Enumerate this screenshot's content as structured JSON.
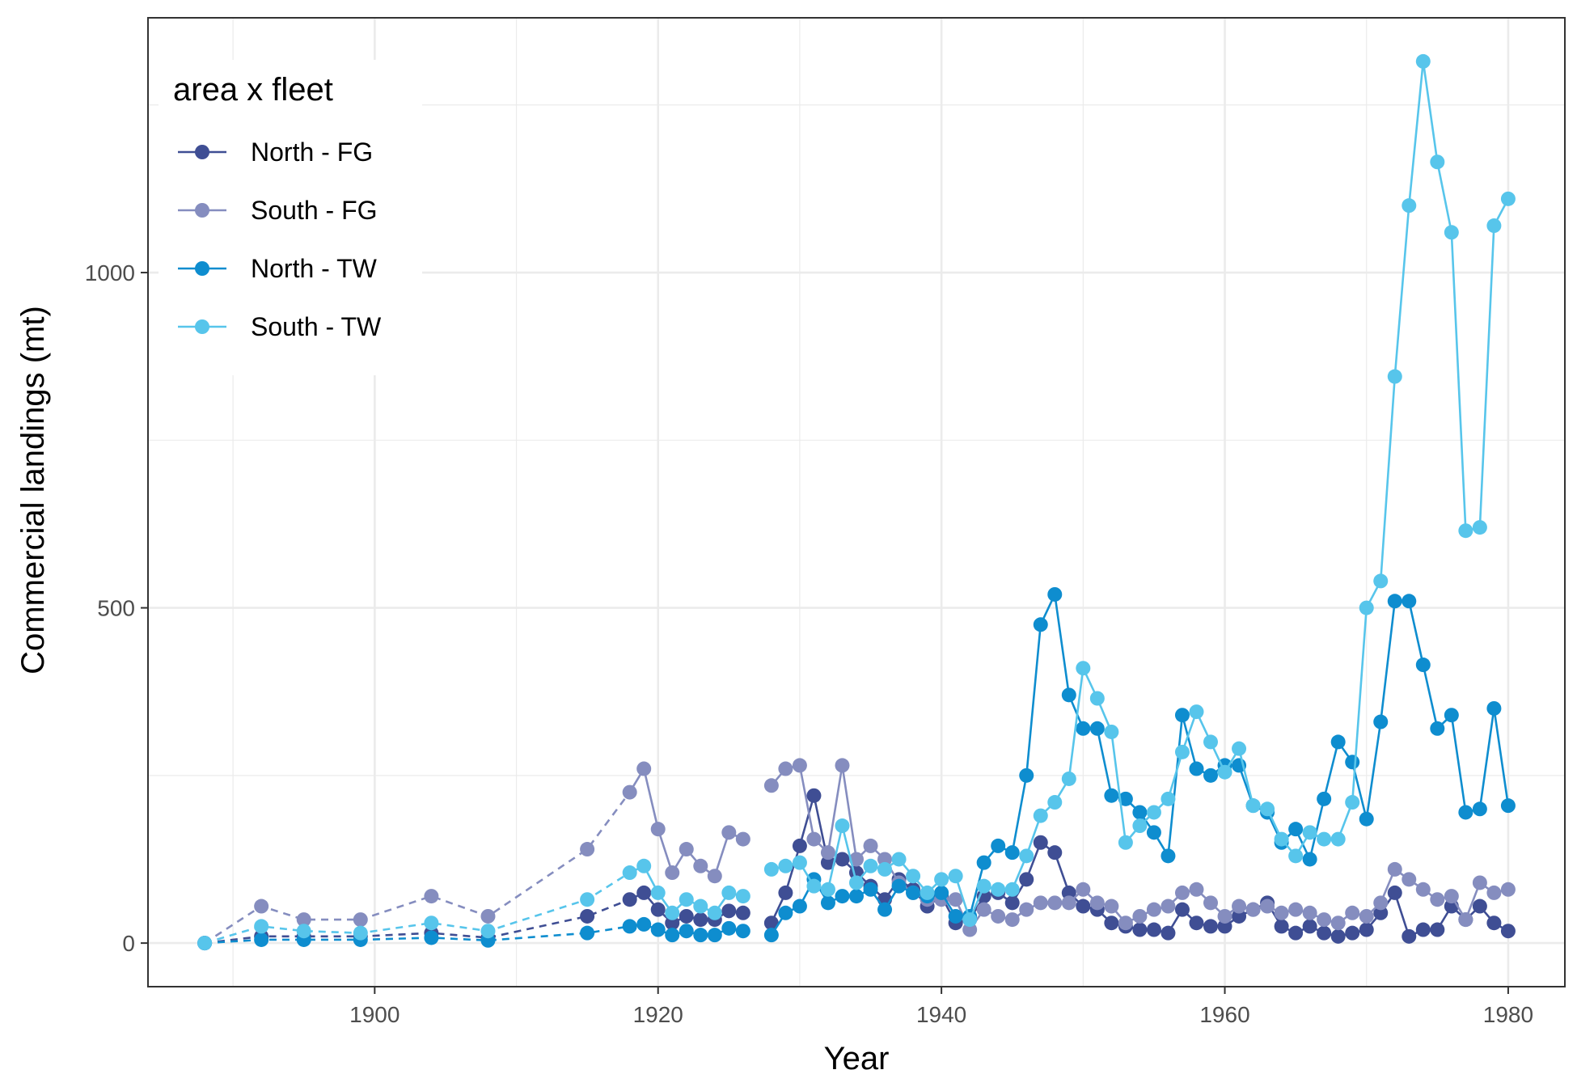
{
  "chart_data": {
    "type": "line",
    "xlabel": "Year",
    "ylabel": "Commercial landings (mt)",
    "xlim": [
      1884,
      1984
    ],
    "ylim": [
      -65,
      1380
    ],
    "xticks": [
      1900,
      1920,
      1940,
      1960,
      1980
    ],
    "yticks": [
      0,
      500,
      1000
    ],
    "grid": true,
    "legend": {
      "title": "area x fleet",
      "position": "top-left"
    },
    "series": [
      {
        "name": "North - FG",
        "color": "#3F4E94",
        "sparse": [
          [
            1888,
            0
          ],
          [
            1892,
            10
          ],
          [
            1895,
            10
          ],
          [
            1899,
            10
          ],
          [
            1904,
            15
          ],
          [
            1908,
            8
          ],
          [
            1915,
            40
          ]
        ],
        "annual": [
          [
            1918,
            65
          ],
          [
            1919,
            75
          ],
          [
            1920,
            50
          ],
          [
            1921,
            30
          ],
          [
            1922,
            40
          ],
          [
            1923,
            35
          ],
          [
            1924,
            35
          ],
          [
            1925,
            48
          ],
          [
            1926,
            45
          ],
          [
            1927,
            null
          ],
          [
            1928,
            30
          ],
          [
            1929,
            75
          ],
          [
            1930,
            145
          ],
          [
            1931,
            220
          ],
          [
            1932,
            120
          ],
          [
            1933,
            125
          ],
          [
            1934,
            105
          ],
          [
            1935,
            85
          ],
          [
            1936,
            65
          ],
          [
            1937,
            95
          ],
          [
            1938,
            80
          ],
          [
            1939,
            55
          ],
          [
            1940,
            70
          ],
          [
            1941,
            30
          ],
          [
            1942,
            35
          ],
          [
            1943,
            70
          ],
          [
            1944,
            75
          ],
          [
            1945,
            60
          ],
          [
            1946,
            95
          ],
          [
            1947,
            150
          ],
          [
            1948,
            135
          ],
          [
            1949,
            75
          ],
          [
            1950,
            55
          ],
          [
            1951,
            50
          ],
          [
            1952,
            30
          ],
          [
            1953,
            25
          ],
          [
            1954,
            20
          ],
          [
            1955,
            20
          ],
          [
            1956,
            15
          ],
          [
            1957,
            50
          ],
          [
            1958,
            30
          ],
          [
            1959,
            25
          ],
          [
            1960,
            25
          ],
          [
            1961,
            40
          ],
          [
            1962,
            50
          ],
          [
            1963,
            60
          ],
          [
            1964,
            25
          ],
          [
            1965,
            15
          ],
          [
            1966,
            25
          ],
          [
            1967,
            15
          ],
          [
            1968,
            10
          ],
          [
            1969,
            15
          ],
          [
            1970,
            20
          ],
          [
            1971,
            45
          ],
          [
            1972,
            75
          ],
          [
            1973,
            10
          ],
          [
            1974,
            20
          ],
          [
            1975,
            20
          ],
          [
            1976,
            55
          ],
          [
            1977,
            35
          ],
          [
            1978,
            55
          ],
          [
            1979,
            30
          ],
          [
            1980,
            18
          ]
        ]
      },
      {
        "name": "South - FG",
        "color": "#858DBF",
        "sparse": [
          [
            1888,
            0
          ],
          [
            1892,
            55
          ],
          [
            1895,
            35
          ],
          [
            1899,
            35
          ],
          [
            1904,
            70
          ],
          [
            1908,
            40
          ],
          [
            1915,
            140
          ]
        ],
        "annual": [
          [
            1918,
            225
          ],
          [
            1919,
            260
          ],
          [
            1920,
            170
          ],
          [
            1921,
            105
          ],
          [
            1922,
            140
          ],
          [
            1923,
            115
          ],
          [
            1924,
            100
          ],
          [
            1925,
            165
          ],
          [
            1926,
            155
          ],
          [
            1927,
            null
          ],
          [
            1928,
            235
          ],
          [
            1929,
            260
          ],
          [
            1930,
            265
          ],
          [
            1931,
            155
          ],
          [
            1932,
            135
          ],
          [
            1933,
            265
          ],
          [
            1934,
            125
          ],
          [
            1935,
            145
          ],
          [
            1936,
            125
          ],
          [
            1937,
            90
          ],
          [
            1938,
            75
          ],
          [
            1939,
            65
          ],
          [
            1940,
            65
          ],
          [
            1941,
            65
          ],
          [
            1942,
            20
          ],
          [
            1943,
            50
          ],
          [
            1944,
            40
          ],
          [
            1945,
            35
          ],
          [
            1946,
            50
          ],
          [
            1947,
            60
          ],
          [
            1948,
            60
          ],
          [
            1949,
            60
          ],
          [
            1950,
            80
          ],
          [
            1951,
            60
          ],
          [
            1952,
            55
          ],
          [
            1953,
            30
          ],
          [
            1954,
            40
          ],
          [
            1955,
            50
          ],
          [
            1956,
            55
          ],
          [
            1957,
            75
          ],
          [
            1958,
            80
          ],
          [
            1959,
            60
          ],
          [
            1960,
            40
          ],
          [
            1961,
            55
          ],
          [
            1962,
            50
          ],
          [
            1963,
            55
          ],
          [
            1964,
            45
          ],
          [
            1965,
            50
          ],
          [
            1966,
            45
          ],
          [
            1967,
            35
          ],
          [
            1968,
            30
          ],
          [
            1969,
            45
          ],
          [
            1970,
            40
          ],
          [
            1971,
            60
          ],
          [
            1972,
            110
          ],
          [
            1973,
            95
          ],
          [
            1974,
            80
          ],
          [
            1975,
            65
          ],
          [
            1976,
            70
          ],
          [
            1977,
            35
          ],
          [
            1978,
            90
          ],
          [
            1979,
            75
          ],
          [
            1980,
            80
          ]
        ]
      },
      {
        "name": "North - TW",
        "color": "#0E8DCF",
        "sparse": [
          [
            1888,
            0
          ],
          [
            1892,
            5
          ],
          [
            1895,
            5
          ],
          [
            1899,
            5
          ],
          [
            1904,
            8
          ],
          [
            1908,
            4
          ],
          [
            1915,
            15
          ]
        ],
        "annual": [
          [
            1918,
            25
          ],
          [
            1919,
            28
          ],
          [
            1920,
            20
          ],
          [
            1921,
            12
          ],
          [
            1922,
            18
          ],
          [
            1923,
            12
          ],
          [
            1924,
            12
          ],
          [
            1925,
            22
          ],
          [
            1926,
            18
          ],
          [
            1927,
            null
          ],
          [
            1928,
            12
          ],
          [
            1929,
            45
          ],
          [
            1930,
            55
          ],
          [
            1931,
            95
          ],
          [
            1932,
            60
          ],
          [
            1933,
            70
          ],
          [
            1934,
            70
          ],
          [
            1935,
            80
          ],
          [
            1936,
            50
          ],
          [
            1937,
            85
          ],
          [
            1938,
            75
          ],
          [
            1939,
            70
          ],
          [
            1940,
            75
          ],
          [
            1941,
            40
          ],
          [
            1942,
            40
          ],
          [
            1943,
            120
          ],
          [
            1944,
            145
          ],
          [
            1945,
            135
          ],
          [
            1946,
            250
          ],
          [
            1947,
            475
          ],
          [
            1948,
            520
          ],
          [
            1949,
            370
          ],
          [
            1950,
            320
          ],
          [
            1951,
            320
          ],
          [
            1952,
            220
          ],
          [
            1953,
            215
          ],
          [
            1954,
            195
          ],
          [
            1955,
            165
          ],
          [
            1956,
            130
          ],
          [
            1957,
            340
          ],
          [
            1958,
            260
          ],
          [
            1959,
            250
          ],
          [
            1960,
            265
          ],
          [
            1961,
            265
          ],
          [
            1962,
            205
          ],
          [
            1963,
            195
          ],
          [
            1964,
            150
          ],
          [
            1965,
            170
          ],
          [
            1966,
            125
          ],
          [
            1967,
            215
          ],
          [
            1968,
            300
          ],
          [
            1969,
            270
          ],
          [
            1970,
            185
          ],
          [
            1971,
            330
          ],
          [
            1972,
            510
          ],
          [
            1973,
            510
          ],
          [
            1974,
            415
          ],
          [
            1975,
            320
          ],
          [
            1976,
            340
          ],
          [
            1977,
            195
          ],
          [
            1978,
            200
          ],
          [
            1979,
            350
          ],
          [
            1980,
            205
          ]
        ]
      },
      {
        "name": "South - TW",
        "color": "#57C5EB",
        "sparse": [
          [
            1888,
            0
          ],
          [
            1892,
            25
          ],
          [
            1895,
            18
          ],
          [
            1899,
            15
          ],
          [
            1904,
            30
          ],
          [
            1908,
            18
          ],
          [
            1915,
            65
          ]
        ],
        "annual": [
          [
            1918,
            105
          ],
          [
            1919,
            115
          ],
          [
            1920,
            75
          ],
          [
            1921,
            45
          ],
          [
            1922,
            65
          ],
          [
            1923,
            55
          ],
          [
            1924,
            45
          ],
          [
            1925,
            75
          ],
          [
            1926,
            70
          ],
          [
            1927,
            null
          ],
          [
            1928,
            110
          ],
          [
            1929,
            115
          ],
          [
            1930,
            120
          ],
          [
            1931,
            85
          ],
          [
            1932,
            80
          ],
          [
            1933,
            175
          ],
          [
            1934,
            90
          ],
          [
            1935,
            115
          ],
          [
            1936,
            110
          ],
          [
            1937,
            125
          ],
          [
            1938,
            100
          ],
          [
            1939,
            75
          ],
          [
            1940,
            95
          ],
          [
            1941,
            100
          ],
          [
            1942,
            35
          ],
          [
            1943,
            85
          ],
          [
            1944,
            80
          ],
          [
            1945,
            80
          ],
          [
            1946,
            130
          ],
          [
            1947,
            190
          ],
          [
            1948,
            210
          ],
          [
            1949,
            245
          ],
          [
            1950,
            410
          ],
          [
            1951,
            365
          ],
          [
            1952,
            315
          ],
          [
            1953,
            150
          ],
          [
            1954,
            175
          ],
          [
            1955,
            195
          ],
          [
            1956,
            215
          ],
          [
            1957,
            285
          ],
          [
            1958,
            345
          ],
          [
            1959,
            300
          ],
          [
            1960,
            255
          ],
          [
            1961,
            290
          ],
          [
            1962,
            205
          ],
          [
            1963,
            200
          ],
          [
            1964,
            155
          ],
          [
            1965,
            130
          ],
          [
            1966,
            165
          ],
          [
            1967,
            155
          ],
          [
            1968,
            155
          ],
          [
            1969,
            210
          ],
          [
            1970,
            500
          ],
          [
            1971,
            540
          ],
          [
            1972,
            845
          ],
          [
            1973,
            1100
          ],
          [
            1974,
            1315
          ],
          [
            1975,
            1165
          ],
          [
            1976,
            1060
          ],
          [
            1977,
            615
          ],
          [
            1978,
            620
          ],
          [
            1979,
            1070
          ],
          [
            1980,
            1110
          ]
        ]
      }
    ]
  }
}
